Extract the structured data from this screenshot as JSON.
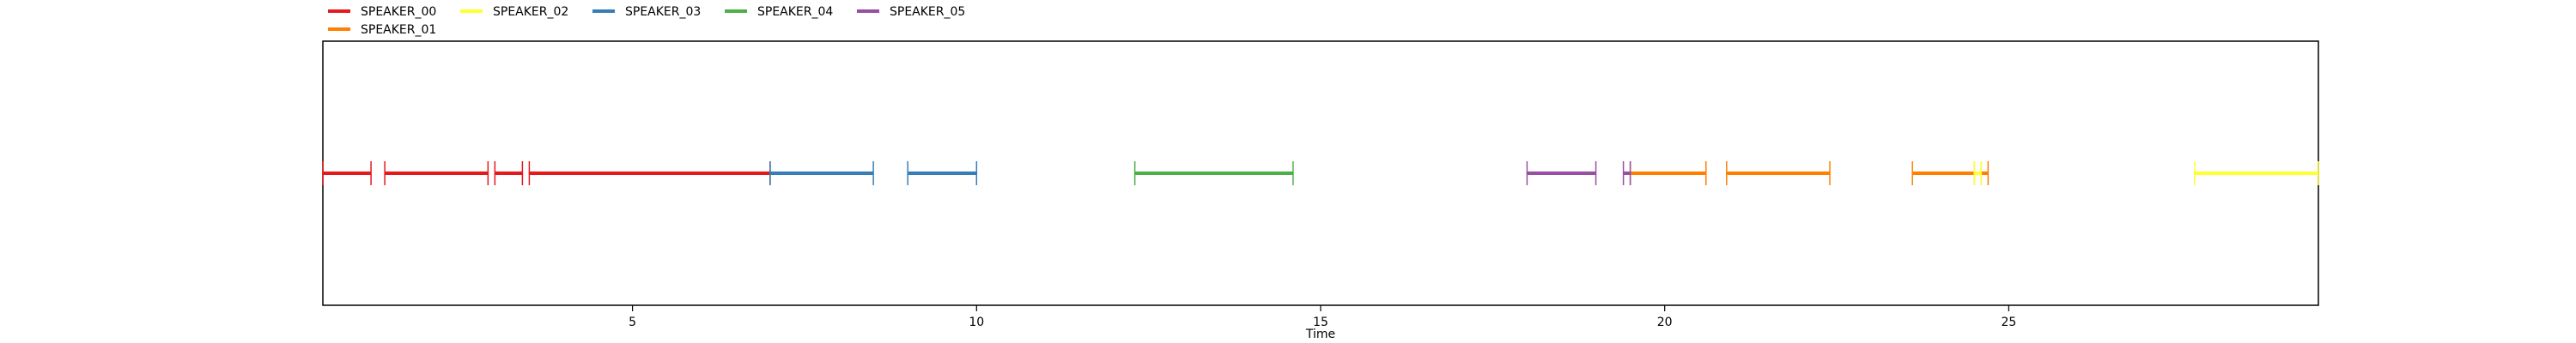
{
  "chart_data": {
    "type": "timeline",
    "xlabel": "Time",
    "xlim": [
      0.5,
      29.5
    ],
    "xticks": [
      5,
      10,
      15,
      20,
      25
    ],
    "grid": false,
    "legend_position": "top-left",
    "series": [
      {
        "name": "SPEAKER_00",
        "color": "#e41a1c",
        "segments": [
          [
            0.5,
            1.2
          ],
          [
            1.4,
            2.9
          ],
          [
            3.0,
            3.4
          ],
          [
            3.5,
            7.0
          ]
        ]
      },
      {
        "name": "SPEAKER_01",
        "color": "#ff7f00",
        "segments": [
          [
            19.5,
            20.6
          ],
          [
            20.9,
            22.4
          ],
          [
            23.6,
            24.5
          ],
          [
            24.6,
            24.7
          ]
        ]
      },
      {
        "name": "SPEAKER_02",
        "color": "#ffff33",
        "segments": [
          [
            24.5,
            24.6
          ],
          [
            27.7,
            29.5
          ]
        ]
      },
      {
        "name": "SPEAKER_03",
        "color": "#377eb8",
        "segments": [
          [
            7.0,
            8.5
          ],
          [
            9.0,
            10.0
          ]
        ]
      },
      {
        "name": "SPEAKER_04",
        "color": "#4daf4a",
        "segments": [
          [
            12.3,
            14.6
          ]
        ]
      },
      {
        "name": "SPEAKER_05",
        "color": "#984ea3",
        "segments": [
          [
            18.0,
            19.0
          ],
          [
            19.4,
            19.5
          ]
        ]
      }
    ]
  }
}
